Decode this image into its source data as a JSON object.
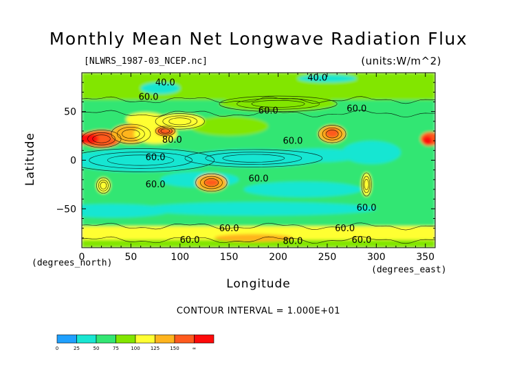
{
  "chart_data": {
    "type": "heatmap",
    "title": "Monthly Mean Net Longwave Radiation Flux",
    "file_label": "[NLWRS_1987-03_NCEP.nc]",
    "units_label": "(units:W/m^2)",
    "xlabel": "Longitude",
    "ylabel": "Latitude",
    "x_units": "(degrees_east)",
    "y_units": "(degrees_north)",
    "xlim": [
      0,
      360
    ],
    "ylim": [
      -90,
      90
    ],
    "x_ticks": [
      0,
      50,
      100,
      150,
      200,
      250,
      300,
      350
    ],
    "y_ticks": [
      50,
      0,
      -50
    ],
    "contour_interval_text": "CONTOUR INTERVAL = 1.000E+01",
    "contour_labels": [
      {
        "text": "40.0",
        "lon": 85,
        "lat": 77
      },
      {
        "text": "40.0",
        "lon": 240,
        "lat": 82
      },
      {
        "text": "60.0",
        "lon": 68,
        "lat": 62
      },
      {
        "text": "60.0",
        "lon": 190,
        "lat": 48
      },
      {
        "text": "60.0",
        "lon": 280,
        "lat": 50
      },
      {
        "text": "60.0",
        "lon": 215,
        "lat": 17
      },
      {
        "text": "80.0",
        "lon": 92,
        "lat": 18
      },
      {
        "text": "60.0",
        "lon": 75,
        "lat": 0
      },
      {
        "text": "60.0",
        "lon": 75,
        "lat": -28
      },
      {
        "text": "60.0",
        "lon": 180,
        "lat": -22
      },
      {
        "text": "60.0",
        "lon": 290,
        "lat": -52
      },
      {
        "text": "60.0",
        "lon": 150,
        "lat": -73
      },
      {
        "text": "60.0",
        "lon": 268,
        "lat": -73
      },
      {
        "text": "60.0",
        "lon": 110,
        "lat": -85
      },
      {
        "text": "80.0",
        "lon": 215,
        "lat": -86
      },
      {
        "text": "60.0",
        "lon": 285,
        "lat": -85
      }
    ],
    "colorbar": {
      "colors": [
        "#1fa0ff",
        "#19e6d2",
        "#33e673",
        "#82e600",
        "#ffff33",
        "#ffb41e",
        "#ff5a1e",
        "#ff0a0a"
      ],
      "tick_labels": [
        "0",
        "25",
        "50",
        "75",
        "100",
        "125",
        "150",
        "∞"
      ]
    },
    "regions": [
      {
        "name": "global-background",
        "level": 2,
        "color_index": 2
      },
      {
        "name": "north-pacific-band",
        "level": 3,
        "color_index": 3
      },
      {
        "name": "equatorial-pacific-low",
        "level": 1,
        "color_index": 1
      },
      {
        "name": "sahara-high",
        "level": 6,
        "color_index": 6
      },
      {
        "name": "arabia-high",
        "level": 5,
        "color_index": 5
      },
      {
        "name": "mexico-high",
        "level": 5,
        "color_index": 5
      },
      {
        "name": "australia-high",
        "level": 5,
        "color_index": 5
      },
      {
        "name": "south-africa-high",
        "level": 4,
        "color_index": 4
      },
      {
        "name": "south-america-high",
        "level": 4,
        "color_index": 4
      },
      {
        "name": "antarctic-coast-band",
        "level": 4,
        "color_index": 4
      }
    ]
  }
}
